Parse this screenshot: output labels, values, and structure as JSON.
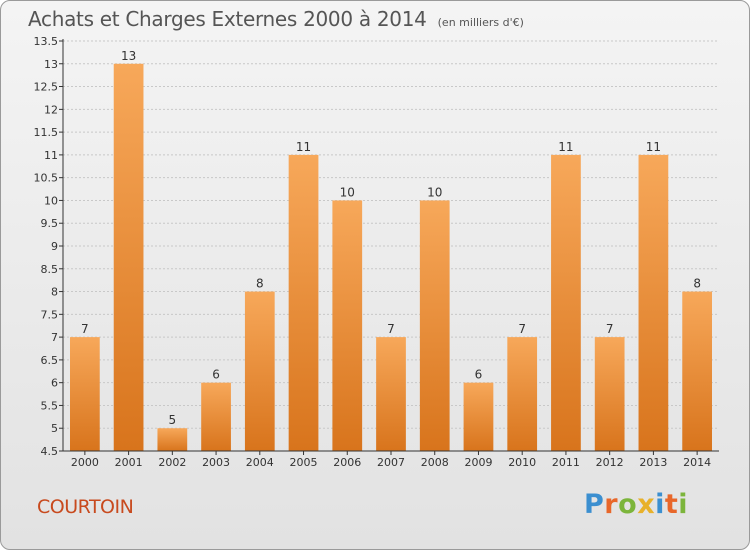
{
  "title": "Achats et Charges Externes 2000 à 2014",
  "unit_label": "(en milliers d'€)",
  "commune": "COURTOIN",
  "logo": {
    "letters": [
      "P",
      "r",
      "o",
      "x",
      "i",
      "t",
      "i"
    ],
    "colors": [
      "#3b8fd0",
      "#e8672a",
      "#7cb53b",
      "#e8b12a",
      "#3b8fd0",
      "#e8672a",
      "#7cb53b"
    ]
  },
  "colors": {
    "bar_light": "#f7a85a",
    "bar_dark": "#d8741c",
    "axis": "#333333",
    "grid": "#c8c8c8",
    "text": "#333333"
  },
  "chart_data": {
    "type": "bar",
    "categories": [
      "2000",
      "2001",
      "2002",
      "2003",
      "2004",
      "2005",
      "2006",
      "2007",
      "2008",
      "2009",
      "2010",
      "2011",
      "2012",
      "2013",
      "2014"
    ],
    "values": [
      7,
      13,
      5,
      6,
      8,
      11,
      10,
      7,
      10,
      6,
      7,
      11,
      7,
      11,
      8
    ],
    "ylim": [
      4.5,
      13.5
    ],
    "yticks": [
      "4.5",
      "5",
      "5.5",
      "6",
      "6.5",
      "7",
      "7.5",
      "8",
      "8.5",
      "9",
      "9.5",
      "10",
      "10.5",
      "11",
      "11.5",
      "12",
      "12.5",
      "13",
      "13.5"
    ],
    "grid": true
  }
}
